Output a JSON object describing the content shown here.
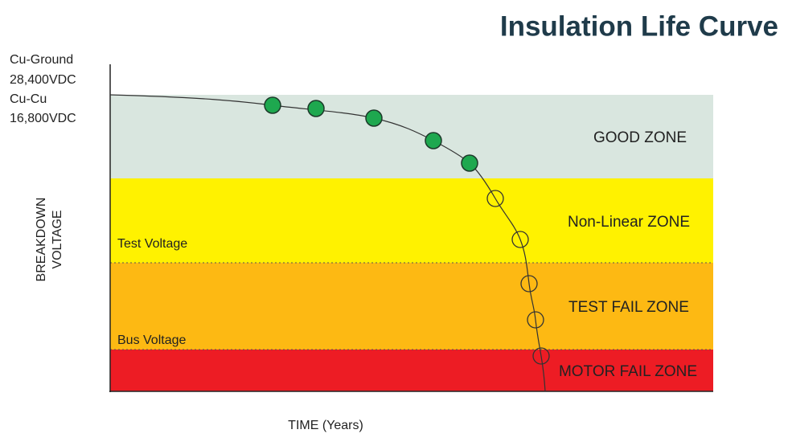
{
  "title": "Insulation Life Curve",
  "voltage_notes": [
    "Cu-Ground",
    "28,400VDC",
    "Cu-Cu",
    "16,800VDC"
  ],
  "y_axis_label": [
    "BREAKDOWN",
    "VOLTAGE"
  ],
  "x_axis_label": "TIME (Years)",
  "reference_lines": [
    "Test Voltage",
    "Bus Voltage"
  ],
  "zones": [
    "GOOD ZONE",
    "Non-Linear ZONE",
    "TEST FAIL ZONE",
    "MOTOR FAIL ZONE"
  ]
}
